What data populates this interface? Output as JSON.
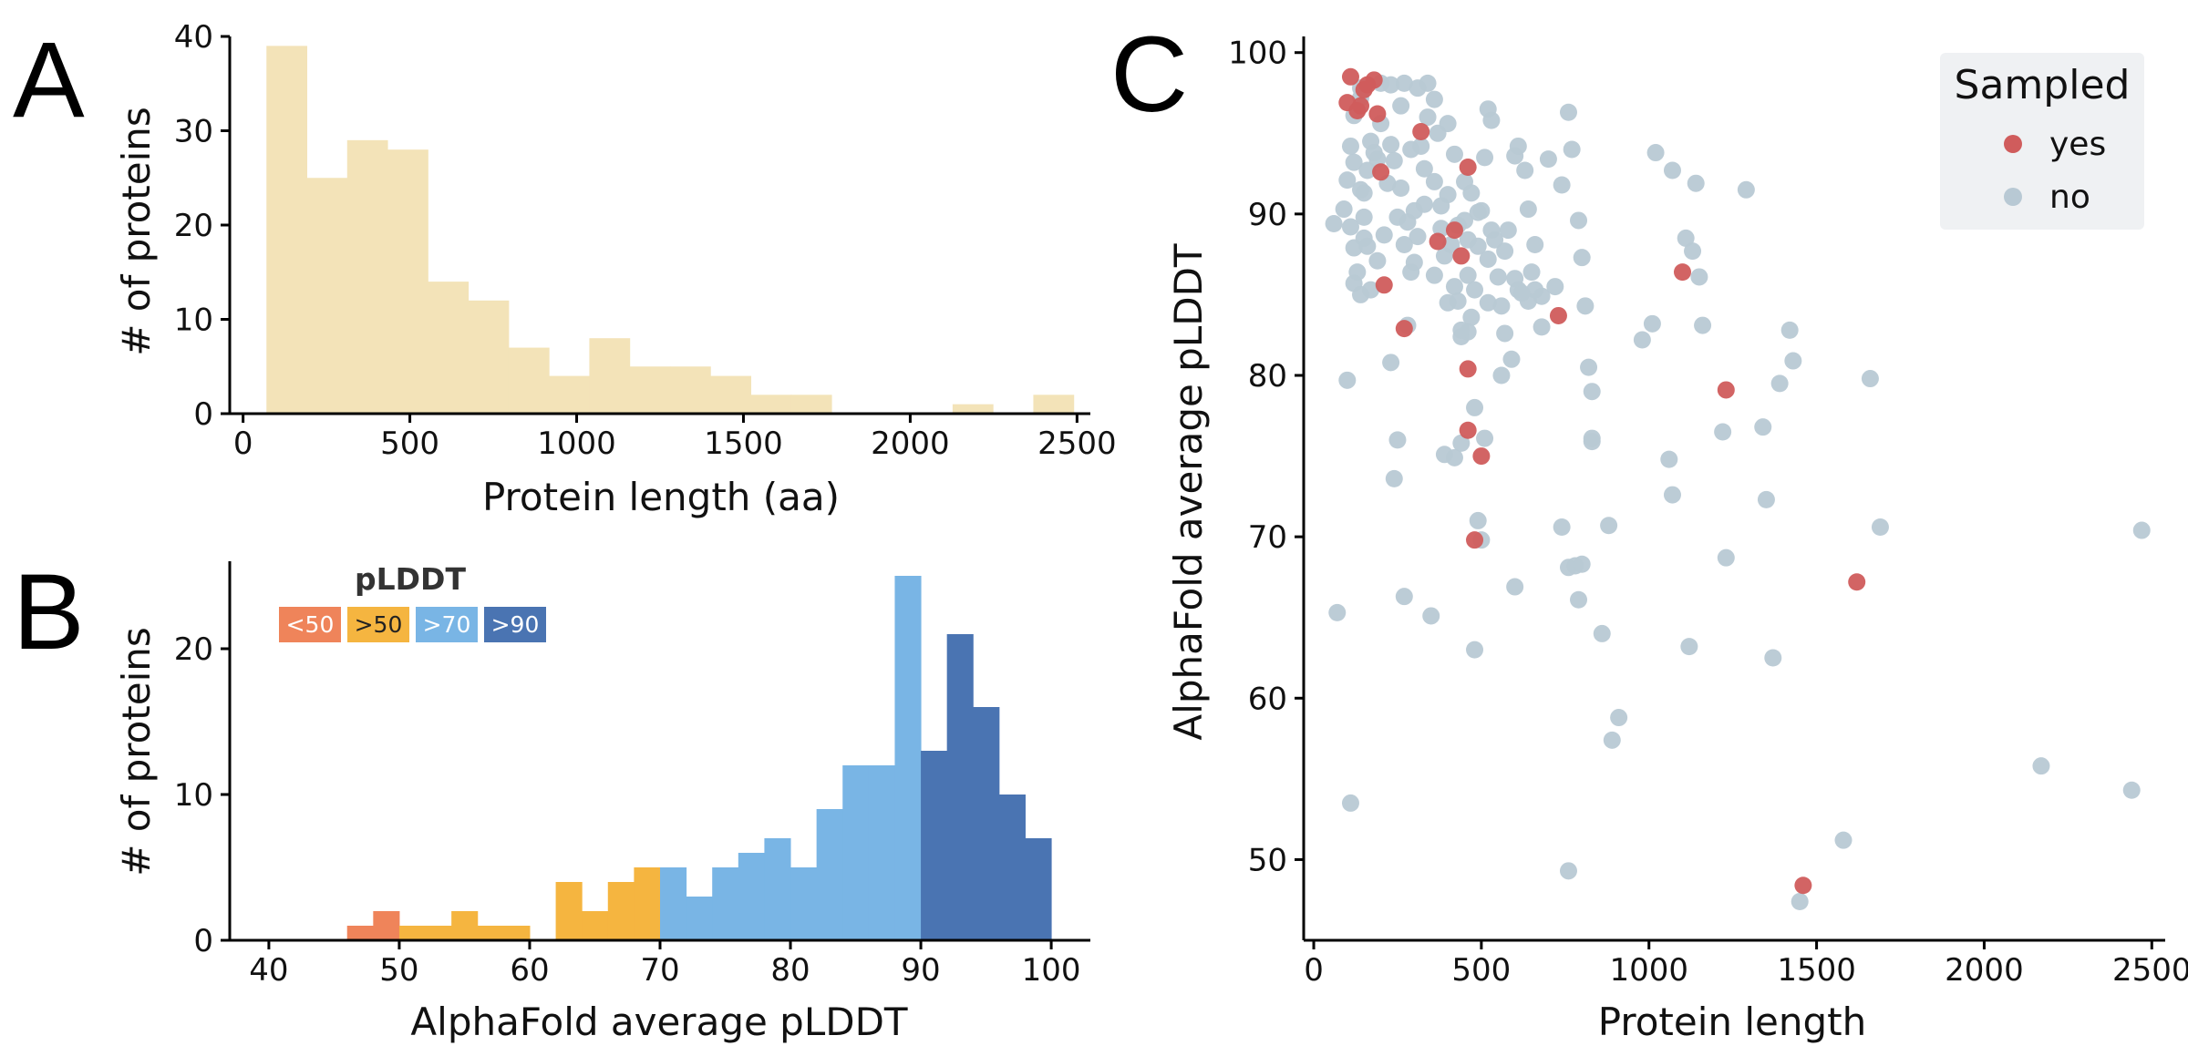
{
  "panels": {
    "a": "A",
    "b": "B",
    "c": "C"
  },
  "chart_data": [
    {
      "panel": "A",
      "type": "bar",
      "style": "histogram",
      "color": "#f3e3b8",
      "xlabel": "Protein length (aa)",
      "ylabel": "# of proteins",
      "xlim": [
        -40,
        2540
      ],
      "ylim": [
        0,
        40
      ],
      "xticks": [
        0,
        500,
        1000,
        1500,
        2000,
        2500
      ],
      "yticks": [
        0,
        10,
        20,
        30,
        40
      ],
      "bin_edges": [
        70,
        191,
        312,
        433,
        554,
        675,
        796,
        917,
        1038,
        1159,
        1280,
        1401,
        1522,
        1643,
        1764,
        1885,
        2006,
        2127,
        2248,
        2369,
        2490
      ],
      "values": [
        39,
        25,
        29,
        28,
        14,
        12,
        7,
        4,
        8,
        5,
        5,
        4,
        2,
        2,
        0,
        0,
        0,
        1,
        0,
        2
      ]
    },
    {
      "panel": "B",
      "type": "bar",
      "style": "histogram",
      "xlabel": "AlphaFold average pLDDT",
      "ylabel": "# of proteins",
      "xlim": [
        37,
        103
      ],
      "ylim": [
        0,
        26
      ],
      "xticks": [
        40,
        50,
        60,
        70,
        80,
        90,
        100
      ],
      "yticks": [
        0,
        10,
        20
      ],
      "bin_edges": [
        46,
        48,
        50,
        52,
        54,
        56,
        58,
        60,
        62,
        64,
        66,
        68,
        70,
        72,
        74,
        76,
        78,
        80,
        82,
        84,
        86,
        88,
        90,
        92,
        94,
        96,
        98,
        100
      ],
      "values": [
        1,
        2,
        1,
        1,
        2,
        1,
        1,
        0,
        4,
        2,
        4,
        5,
        5,
        3,
        5,
        6,
        7,
        5,
        9,
        12,
        12,
        25,
        13,
        21,
        16,
        10,
        7
      ],
      "colors": {
        "lt50": "#ef845a",
        "gt50": "#f5b540",
        "gt70": "#79b5e5",
        "gt90": "#4a74b2"
      },
      "key": {
        "title": "pLDDT",
        "items": [
          {
            "label": "<50",
            "color": "#ef845a",
            "text_color": "#ffffff"
          },
          {
            "label": ">50",
            "color": "#f5b540",
            "text_color": "#222222"
          },
          {
            "label": ">70",
            "color": "#79b5e5",
            "text_color": "#ffffff"
          },
          {
            "label": ">90",
            "color": "#4a74b2",
            "text_color": "#ffffff"
          }
        ]
      }
    },
    {
      "panel": "C",
      "type": "scatter",
      "xlabel": "Protein length",
      "ylabel": "AlphaFold average pLDDT",
      "xlim": [
        -30,
        2540
      ],
      "ylim": [
        45,
        101
      ],
      "xticks": [
        0,
        500,
        1000,
        1500,
        2000,
        2500
      ],
      "yticks": [
        50,
        60,
        70,
        80,
        90,
        100
      ],
      "grid": false,
      "legend": {
        "title": "Sampled",
        "position": "top-right",
        "background": "#eff1f3"
      },
      "series": [
        {
          "name": "no",
          "color": "#b8c9d4",
          "points": [
            [
              60,
              89.4
            ],
            [
              70,
              65.3
            ],
            [
              90,
              90.3
            ],
            [
              100,
              79.7
            ],
            [
              110,
              53.5
            ],
            [
              100,
              92.1
            ],
            [
              120,
              93.2
            ],
            [
              110,
              94.2
            ],
            [
              120,
              96.1
            ],
            [
              140,
              97.8
            ],
            [
              140,
              97.2
            ],
            [
              110,
              89.2
            ],
            [
              120,
              87.9
            ],
            [
              130,
              86.4
            ],
            [
              120,
              85.7
            ],
            [
              140,
              85.0
            ],
            [
              150,
              88.5
            ],
            [
              150,
              91.3
            ],
            [
              160,
              92.7
            ],
            [
              170,
              94.5
            ],
            [
              190,
              93.4
            ],
            [
              200,
              95.6
            ],
            [
              220,
              91.9
            ],
            [
              230,
              94.3
            ],
            [
              240,
              93.3
            ],
            [
              260,
              91.6
            ],
            [
              270,
              98.1
            ],
            [
              280,
              89.5
            ],
            [
              290,
              86.4
            ],
            [
              300,
              90.2
            ],
            [
              310,
              88.6
            ],
            [
              320,
              94.2
            ],
            [
              330,
              92.8
            ],
            [
              340,
              98.1
            ],
            [
              360,
              97.1
            ],
            [
              370,
              95.0
            ],
            [
              380,
              89.1
            ],
            [
              390,
              87.4
            ],
            [
              400,
              91.2
            ],
            [
              410,
              88.1
            ],
            [
              420,
              85.5
            ],
            [
              430,
              84.6
            ],
            [
              440,
              82.4
            ],
            [
              450,
              89.6
            ],
            [
              460,
              86.2
            ],
            [
              470,
              83.6
            ],
            [
              480,
              85.3
            ],
            [
              490,
              88.0
            ],
            [
              500,
              90.2
            ],
            [
              510,
              93.5
            ],
            [
              520,
              96.5
            ],
            [
              530,
              95.8
            ],
            [
              540,
              88.4
            ],
            [
              550,
              86.1
            ],
            [
              560,
              84.3
            ],
            [
              570,
              82.6
            ],
            [
              580,
              89.0
            ],
            [
              600,
              93.6
            ],
            [
              610,
              94.2
            ],
            [
              630,
              92.7
            ],
            [
              640,
              90.3
            ],
            [
              650,
              86.4
            ],
            [
              660,
              88.1
            ],
            [
              680,
              84.9
            ],
            [
              700,
              93.4
            ],
            [
              720,
              85.5
            ],
            [
              740,
              91.8
            ],
            [
              760,
              96.3
            ],
            [
              770,
              94.0
            ],
            [
              790,
              89.6
            ],
            [
              800,
              87.3
            ],
            [
              810,
              84.3
            ],
            [
              820,
              80.5
            ],
            [
              830,
              75.9
            ],
            [
              830,
              79.0
            ],
            [
              210,
              88.7
            ],
            [
              230,
              80.8
            ],
            [
              240,
              73.6
            ],
            [
              250,
              76.0
            ],
            [
              270,
              66.3
            ],
            [
              280,
              83.1
            ],
            [
              330,
              90.6
            ],
            [
              350,
              65.1
            ],
            [
              390,
              75.1
            ],
            [
              420,
              74.9
            ],
            [
              440,
              75.8
            ],
            [
              460,
              82.7
            ],
            [
              480,
              78.0
            ],
            [
              480,
              63.0
            ],
            [
              490,
              71.0
            ],
            [
              500,
              69.8
            ],
            [
              510,
              76.1
            ],
            [
              520,
              84.5
            ],
            [
              560,
              80.0
            ],
            [
              590,
              81.0
            ],
            [
              600,
              66.9
            ],
            [
              610,
              85.3
            ],
            [
              640,
              84.6
            ],
            [
              660,
              85.3
            ],
            [
              740,
              70.6
            ],
            [
              760,
              68.1
            ],
            [
              780,
              68.2
            ],
            [
              790,
              66.1
            ],
            [
              800,
              68.3
            ],
            [
              830,
              76.1
            ],
            [
              860,
              64.0
            ],
            [
              880,
              70.7
            ],
            [
              890,
              57.4
            ],
            [
              910,
              58.8
            ],
            [
              760,
              49.3
            ],
            [
              980,
              82.2
            ],
            [
              1010,
              83.2
            ],
            [
              1020,
              93.8
            ],
            [
              1060,
              74.8
            ],
            [
              1070,
              72.6
            ],
            [
              1070,
              92.7
            ],
            [
              1110,
              88.5
            ],
            [
              1120,
              63.2
            ],
            [
              1130,
              87.7
            ],
            [
              1140,
              91.9
            ],
            [
              1150,
              86.1
            ],
            [
              1160,
              83.1
            ],
            [
              1220,
              76.5
            ],
            [
              1230,
              68.7
            ],
            [
              1290,
              91.5
            ],
            [
              1340,
              76.8
            ],
            [
              1350,
              72.3
            ],
            [
              1370,
              62.5
            ],
            [
              1390,
              79.5
            ],
            [
              1420,
              82.8
            ],
            [
              1430,
              80.9
            ],
            [
              1450,
              47.4
            ],
            [
              1580,
              51.2
            ],
            [
              1660,
              79.8
            ],
            [
              1690,
              70.6
            ],
            [
              2170,
              55.8
            ],
            [
              2440,
              54.3
            ],
            [
              2470,
              70.4
            ],
            [
              150,
              89.8
            ],
            [
              180,
              93.8
            ],
            [
              200,
              98.1
            ],
            [
              230,
              98.0
            ],
            [
              260,
              96.7
            ],
            [
              290,
              94.0
            ],
            [
              310,
              97.8
            ],
            [
              340,
              96.0
            ],
            [
              400,
              95.6
            ],
            [
              420,
              93.7
            ],
            [
              450,
              92.0
            ],
            [
              470,
              91.3
            ],
            [
              490,
              90.1
            ],
            [
              530,
              89.0
            ],
            [
              570,
              87.7
            ],
            [
              620,
              85.1
            ],
            [
              680,
              83.0
            ],
            [
              170,
              85.3
            ],
            [
              190,
              87.1
            ],
            [
              250,
              89.8
            ],
            [
              270,
              88.1
            ],
            [
              300,
              87.0
            ],
            [
              360,
              86.2
            ],
            [
              400,
              84.5
            ],
            [
              440,
              82.8
            ],
            [
              360,
              92.0
            ],
            [
              380,
              90.5
            ],
            [
              430,
              89.3
            ],
            [
              460,
              88.4
            ],
            [
              520,
              87.2
            ],
            [
              600,
              86.0
            ],
            [
              140,
              91.5
            ],
            [
              160,
              88.0
            ]
          ]
        },
        {
          "name": "yes",
          "color": "#d05c5c",
          "points": [
            [
              110,
              98.5
            ],
            [
              100,
              96.9
            ],
            [
              130,
              96.4
            ],
            [
              140,
              96.7
            ],
            [
              150,
              97.7
            ],
            [
              160,
              98.0
            ],
            [
              180,
              98.3
            ],
            [
              190,
              96.2
            ],
            [
              200,
              92.6
            ],
            [
              210,
              85.6
            ],
            [
              270,
              82.9
            ],
            [
              320,
              95.1
            ],
            [
              370,
              88.3
            ],
            [
              420,
              89.0
            ],
            [
              440,
              87.4
            ],
            [
              460,
              92.9
            ],
            [
              460,
              80.4
            ],
            [
              460,
              76.6
            ],
            [
              480,
              69.8
            ],
            [
              500,
              75.0
            ],
            [
              730,
              83.7
            ],
            [
              1100,
              86.4
            ],
            [
              1230,
              79.1
            ],
            [
              1620,
              67.2
            ],
            [
              1460,
              48.4
            ]
          ]
        }
      ]
    }
  ]
}
